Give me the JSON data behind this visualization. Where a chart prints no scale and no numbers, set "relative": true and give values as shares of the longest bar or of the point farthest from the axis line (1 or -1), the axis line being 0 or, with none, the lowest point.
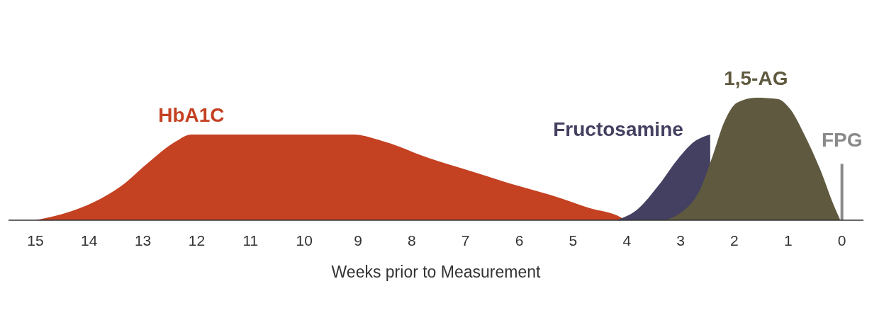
{
  "chart_data": {
    "type": "area",
    "relative": true,
    "xlabel": "Weeks prior to Measurement",
    "xlim": [
      15.5,
      -0.4
    ],
    "xticks": [
      15,
      14,
      13,
      12,
      11,
      10,
      9,
      8,
      7,
      6,
      5,
      4,
      3,
      2,
      1,
      0
    ],
    "series": [
      {
        "name": "HbA1C",
        "color": "#c44122",
        "x": [
          15,
          14.5,
          13.9,
          13.4,
          12.9,
          12.4,
          12.1,
          9.1,
          8.5,
          7.7,
          6.9,
          6.1,
          5.3,
          4.7,
          4.1,
          4.05
        ],
        "values": [
          0,
          0.05,
          0.15,
          0.28,
          0.47,
          0.64,
          0.7,
          0.7,
          0.64,
          0.51,
          0.4,
          0.29,
          0.19,
          0.1,
          0.02,
          0
        ]
      },
      {
        "name": "Fructosamine",
        "color": "#434061",
        "x": [
          4.2,
          3.8,
          3.4,
          3.05,
          2.75,
          2.45
        ],
        "values": [
          0,
          0.09,
          0.29,
          0.5,
          0.64,
          0.7
        ]
      },
      {
        "name": "1,5-AG",
        "color": "#5f5a3f",
        "x": [
          3.3,
          3.0,
          2.65,
          2.4,
          2.2,
          1.95,
          1.6,
          1.2,
          0.95,
          0.7,
          0.4,
          0.15,
          0.03
        ],
        "values": [
          0,
          0.06,
          0.24,
          0.53,
          0.79,
          0.96,
          1,
          0.99,
          0.9,
          0.7,
          0.41,
          0.12,
          0
        ]
      },
      {
        "name": "FPG",
        "type": "line",
        "color": "#8a8a8a",
        "x": [
          0,
          0
        ],
        "values": [
          0,
          0.46
        ]
      }
    ]
  }
}
